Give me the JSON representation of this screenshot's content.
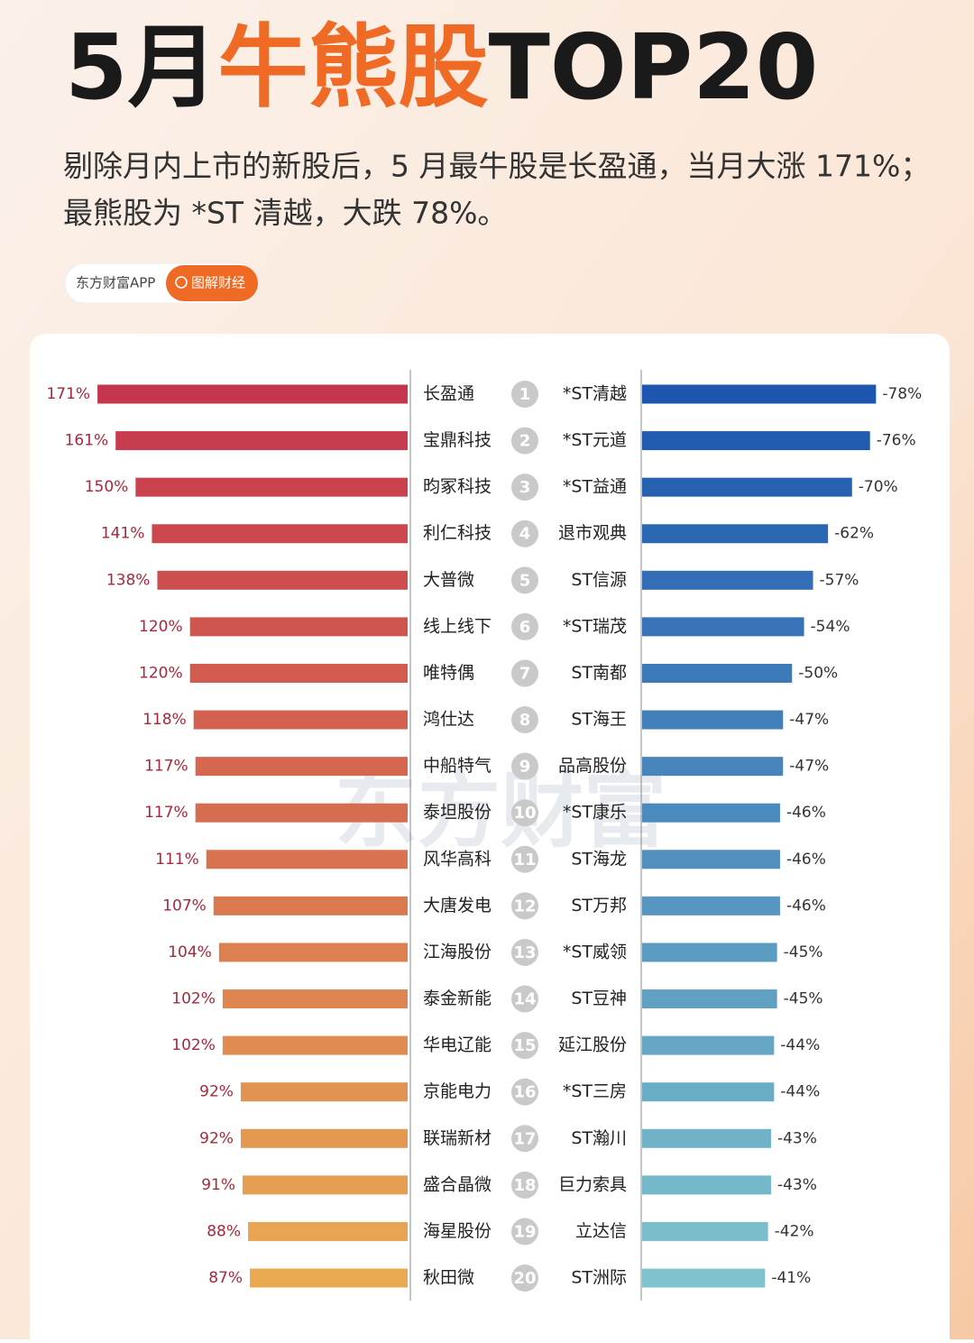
{
  "chart_data": {
    "type": "diverging_bar",
    "title_parts": [
      "5月",
      "牛熊股",
      "TOP20"
    ],
    "subtitle_lines": [
      "剔除月内上市的新股后，5 月最牛股是长盈通，当月大涨 171%；",
      "最熊股为 *ST 清越，大跌 78%。"
    ],
    "badge": {
      "source": "东方财富APP",
      "tag": "图解财经"
    },
    "watermark": "东方财富",
    "ranks": [
      1,
      2,
      3,
      4,
      5,
      6,
      7,
      8,
      9,
      10,
      11,
      12,
      13,
      14,
      15,
      16,
      17,
      18,
      19,
      20
    ],
    "series": [
      {
        "categories": [
          "长盈通",
          "宝鼎科技",
          "昀冢科技",
          "利仁科技",
          "大普微",
          "线上线下",
          "唯特偶",
          "鸿仕达",
          "中船特气",
          "泰坦股份",
          "风华高科",
          "大唐发电",
          "江海股份",
          "泰金新能",
          "华电辽能",
          "京能电力",
          "联瑞新材",
          "盛合晶微",
          "海星股份",
          "秋田微"
        ],
        "values": [
          171,
          161,
          150,
          141,
          138,
          120,
          120,
          118,
          117,
          117,
          111,
          107,
          104,
          102,
          102,
          92,
          92,
          91,
          88,
          87
        ],
        "value_labels": [
          "171%",
          "161%",
          "150%",
          "141%",
          "138%",
          "120%",
          "120%",
          "118%",
          "117%",
          "117%",
          "111%",
          "107%",
          "104%",
          "102%",
          "102%",
          "92%",
          "92%",
          "91%",
          "88%",
          "87%"
        ],
        "colors": [
          "#c5364e",
          "#eaaa52"
        ],
        "xlim": [
          0,
          180
        ]
      },
      {
        "categories": [
          "*ST清越",
          "*ST元道",
          "*ST益通",
          "退市观典",
          "ST信源",
          "*ST瑞茂",
          "ST南都",
          "ST海王",
          "品高股份",
          "*ST康乐",
          "ST海龙",
          "ST万邦",
          "*ST威领",
          "ST豆神",
          "延江股份",
          "*ST三房",
          "ST瀚川",
          "巨力索具",
          "立达信",
          "ST洲际"
        ],
        "values": [
          -78,
          -76,
          -70,
          -62,
          -57,
          -54,
          -50,
          -47,
          -47,
          -46,
          -46,
          -46,
          -45,
          -45,
          -44,
          -44,
          -43,
          -43,
          -42,
          -41
        ],
        "value_labels": [
          "-78%",
          "-76%",
          "-70%",
          "-62%",
          "-57%",
          "-54%",
          "-50%",
          "-47%",
          "-47%",
          "-46%",
          "-46%",
          "-46%",
          "-45%",
          "-45%",
          "-44%",
          "-44%",
          "-43%",
          "-43%",
          "-42%",
          "-41%"
        ],
        "colors": [
          "#1d56ae",
          "#7fc4cd"
        ],
        "xlim": [
          0,
          -80
        ]
      }
    ]
  }
}
